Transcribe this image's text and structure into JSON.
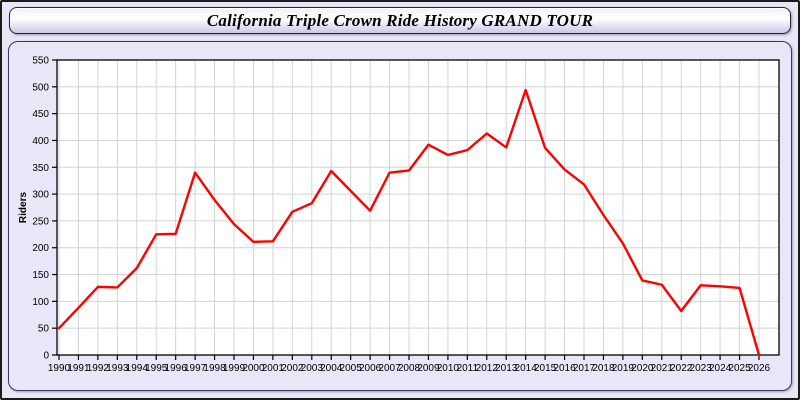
{
  "page": {
    "title_bar": {
      "text": "California Triple Crown Ride History GRAND TOUR"
    },
    "background_color": "#e7e7f7"
  },
  "chart_data": {
    "type": "line",
    "title": "California Triple Crown Ride History GRAND TOUR",
    "xlabel": "",
    "ylabel": "Riders",
    "ylim": [
      0,
      550
    ],
    "ytick_step": 50,
    "grid": true,
    "legend_position": "none",
    "line_color": "#ff0000",
    "plot_bg": "#ffffff",
    "grid_color": "#d4d4d4",
    "axis_color": "#000000",
    "x": [
      1990,
      1991,
      1992,
      1993,
      1994,
      1995,
      1996,
      1997,
      1998,
      1999,
      2000,
      2001,
      2002,
      2003,
      2004,
      2005,
      2006,
      2007,
      2008,
      2009,
      2010,
      2011,
      2012,
      2013,
      2014,
      2015,
      2016,
      2017,
      2018,
      2019,
      2020,
      2021,
      2022,
      2023,
      2024,
      2025,
      2026
    ],
    "series": [
      {
        "name": "Riders",
        "values": [
          50,
          88,
          127,
          126,
          162,
          225,
          226,
          340,
          289,
          244,
          211,
          212,
          267,
          283,
          343,
          306,
          269,
          340,
          344,
          392,
          373,
          382,
          413,
          387,
          494,
          386,
          346,
          318,
          261,
          208,
          139,
          131,
          82,
          130,
          128,
          125,
          0
        ]
      }
    ]
  }
}
